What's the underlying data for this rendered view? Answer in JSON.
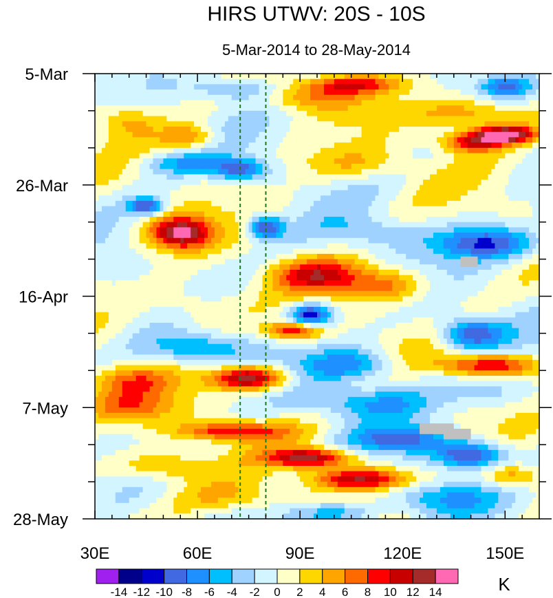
{
  "chart_data": {
    "type": "heatmap",
    "title": "HIRS UTWV: 20S - 10S",
    "subtitle": "5-Mar-2014 to 28-May-2014",
    "xlabel": "",
    "ylabel": "",
    "x_range": [
      30,
      160
    ],
    "x_ticks": [
      {
        "value": 30,
        "label": "30E"
      },
      {
        "value": 60,
        "label": "60E"
      },
      {
        "value": 90,
        "label": "90E"
      },
      {
        "value": 120,
        "label": "120E"
      },
      {
        "value": 150,
        "label": "150E"
      }
    ],
    "y_range_days": [
      0,
      84
    ],
    "y_ticks": [
      {
        "day": 0,
        "label": "5-Mar"
      },
      {
        "day": 21,
        "label": "26-Mar"
      },
      {
        "day": 42,
        "label": "16-Apr"
      },
      {
        "day": 63,
        "label": "7-May"
      },
      {
        "day": 84,
        "label": "28-May"
      }
    ],
    "reference_lines_lon": [
      72.5,
      80
    ],
    "colorbar": {
      "unit": "K",
      "levels": [
        -14,
        -12,
        -10,
        -8,
        -6,
        -4,
        -2,
        0,
        2,
        4,
        6,
        8,
        10,
        12,
        14
      ],
      "colors": [
        "#a020f0",
        "#00008b",
        "#0000cd",
        "#4169e1",
        "#1e90ff",
        "#00bfff",
        "#a0d2ff",
        "#d2f5ff",
        "#ffffc8",
        "#ffd700",
        "#ffa500",
        "#ff6a00",
        "#ff0000",
        "#c80000",
        "#a52a2a",
        "#ff69b4"
      ]
    },
    "missing_color": "#c0c0c0",
    "features": [
      {
        "lon": 105,
        "day": 2,
        "value": 9,
        "dlon": 14,
        "dday": 1.8
      },
      {
        "lon": 92,
        "day": 4.5,
        "value": 6,
        "dlon": 15,
        "dday": 2.4
      },
      {
        "lon": 72,
        "day": 3,
        "value": -6,
        "dlon": 12,
        "dday": 2.2
      },
      {
        "lon": 150,
        "day": 2.5,
        "value": -7,
        "dlon": 7,
        "dday": 1.8
      },
      {
        "lon": 140,
        "day": 7.5,
        "value": 7,
        "dlon": 16,
        "dday": 3
      },
      {
        "lon": 150,
        "day": 11.5,
        "value": 15,
        "dlon": 9,
        "dday": 1.6
      },
      {
        "lon": 140,
        "day": 13,
        "value": 10,
        "dlon": 9,
        "dday": 1.8
      },
      {
        "lon": 40,
        "day": 9,
        "value": 4,
        "dlon": 8,
        "dday": 3
      },
      {
        "lon": 58,
        "day": 12,
        "value": 6,
        "dlon": 8,
        "dday": 2.2
      },
      {
        "lon": 72,
        "day": 18,
        "value": -9,
        "dlon": 8,
        "dday": 2
      },
      {
        "lon": 55,
        "day": 17,
        "value": -5,
        "dlon": 12,
        "dday": 2
      },
      {
        "lon": 105,
        "day": 17,
        "value": 4,
        "dlon": 16,
        "dday": 3
      },
      {
        "lon": 45,
        "day": 25,
        "value": -10,
        "dlon": 5,
        "dday": 1.6
      },
      {
        "lon": 55,
        "day": 30,
        "value": 14,
        "dlon": 9,
        "dday": 3
      },
      {
        "lon": 80,
        "day": 29,
        "value": -11,
        "dlon": 5,
        "dday": 2.2
      },
      {
        "lon": 145,
        "day": 32,
        "value": -10,
        "dlon": 14,
        "dday": 3
      },
      {
        "lon": 110,
        "day": 30,
        "value": -4,
        "dlon": 14,
        "dday": 3
      },
      {
        "lon": 95,
        "day": 38,
        "value": 9,
        "dlon": 13,
        "dday": 3
      },
      {
        "lon": 115,
        "day": 40,
        "value": 7,
        "dlon": 12,
        "dday": 3
      },
      {
        "lon": 93,
        "day": 45.5,
        "value": -12,
        "dlon": 6,
        "dday": 2
      },
      {
        "lon": 60,
        "day": 44,
        "value": 4,
        "dlon": 12,
        "dday": 4
      },
      {
        "lon": 88,
        "day": 48.5,
        "value": 10,
        "dlon": 8,
        "dday": 1.7
      },
      {
        "lon": 140,
        "day": 49,
        "value": -10,
        "dlon": 9,
        "dday": 3
      },
      {
        "lon": 60,
        "day": 52,
        "value": -7,
        "dlon": 14,
        "dday": 3
      },
      {
        "lon": 75,
        "day": 57.5,
        "value": 14,
        "dlon": 11,
        "dday": 2.2
      },
      {
        "lon": 40,
        "day": 58,
        "value": 6,
        "dlon": 13,
        "dday": 3
      },
      {
        "lon": 145,
        "day": 55,
        "value": 11,
        "dlon": 14,
        "dday": 2.2
      },
      {
        "lon": 105,
        "day": 55,
        "value": -7,
        "dlon": 14,
        "dday": 3
      },
      {
        "lon": 40,
        "day": 63,
        "value": 6,
        "dlon": 14,
        "dday": 3
      },
      {
        "lon": 110,
        "day": 62,
        "value": -6,
        "dlon": 18,
        "dday": 3
      },
      {
        "lon": 145,
        "day": 60,
        "value": -4,
        "dlon": 12,
        "dday": 3
      },
      {
        "lon": 70,
        "day": 67.5,
        "value": 10,
        "dlon": 16,
        "dday": 1.8
      },
      {
        "lon": 93,
        "day": 72.5,
        "value": 13,
        "dlon": 12,
        "dday": 1.8
      },
      {
        "lon": 108,
        "day": 76.5,
        "value": 12,
        "dlon": 14,
        "dday": 2
      },
      {
        "lon": 50,
        "day": 74,
        "value": 6,
        "dlon": 14,
        "dday": 3
      },
      {
        "lon": 140,
        "day": 72,
        "value": -11,
        "dlon": 10,
        "dday": 2.4
      },
      {
        "lon": 120,
        "day": 69,
        "value": -8,
        "dlon": 14,
        "dday": 2.4
      },
      {
        "lon": 70,
        "day": 80,
        "value": 4,
        "dlon": 16,
        "dday": 3
      },
      {
        "lon": 130,
        "day": 80,
        "value": -6,
        "dlon": 14,
        "dday": 3
      },
      {
        "lon": 152,
        "day": 76,
        "value": 7,
        "dlon": 8,
        "dday": 2.4
      },
      {
        "lon": 100,
        "day": 83,
        "value": -6,
        "dlon": 14,
        "dday": 2
      }
    ],
    "missing_patches": [
      {
        "lon0": 137,
        "lon1": 142,
        "day0": 34.5,
        "day1": 36.5
      },
      {
        "lon0": 125,
        "lon1": 135,
        "day0": 66,
        "day1": 68
      },
      {
        "lon0": 132,
        "lon1": 140,
        "day0": 67,
        "day1": 69
      }
    ]
  }
}
